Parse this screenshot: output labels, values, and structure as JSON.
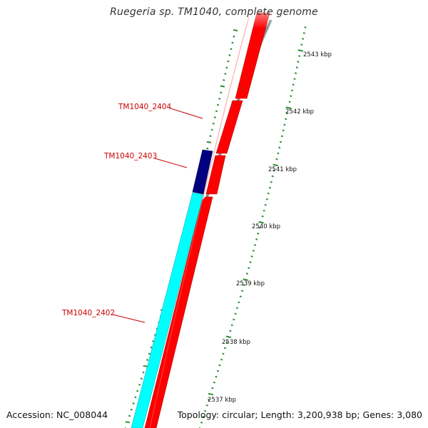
{
  "title": "Ruegeria sp. TM1040, complete genome",
  "footer": {
    "accession": "Accession: NC_008044",
    "topology": "Topology: circular; Length: 3,200,938 bp; Genes: 3,080"
  },
  "scale": {
    "unit": "kbp",
    "ticks": [
      {
        "label": "2543 kbp"
      },
      {
        "label": "2542 kbp"
      },
      {
        "label": "2541 kbp"
      },
      {
        "label": "2540 kbp"
      },
      {
        "label": "2539 kbp"
      },
      {
        "label": "2538 kbp"
      },
      {
        "label": "2537 kbp"
      }
    ]
  },
  "genes": [
    {
      "label": "TM1040_2404",
      "strand": "forward",
      "color": "#ff0000"
    },
    {
      "label": "TM1040_2403",
      "strand": "reverse",
      "color": "#000080",
      "highlighted": true
    },
    {
      "label": "TM1040_2402",
      "strand": "reverse",
      "color": "#00ffff"
    }
  ],
  "colors": {
    "forward_cds": "#ff0000",
    "reverse_cds": "#00ffff",
    "selected_cds": "#000080",
    "backbone": "#888888",
    "ticks": "#2e8b2e",
    "gene_labels": "#cc0000",
    "scale_labels": "#111111",
    "title": "#333333"
  }
}
